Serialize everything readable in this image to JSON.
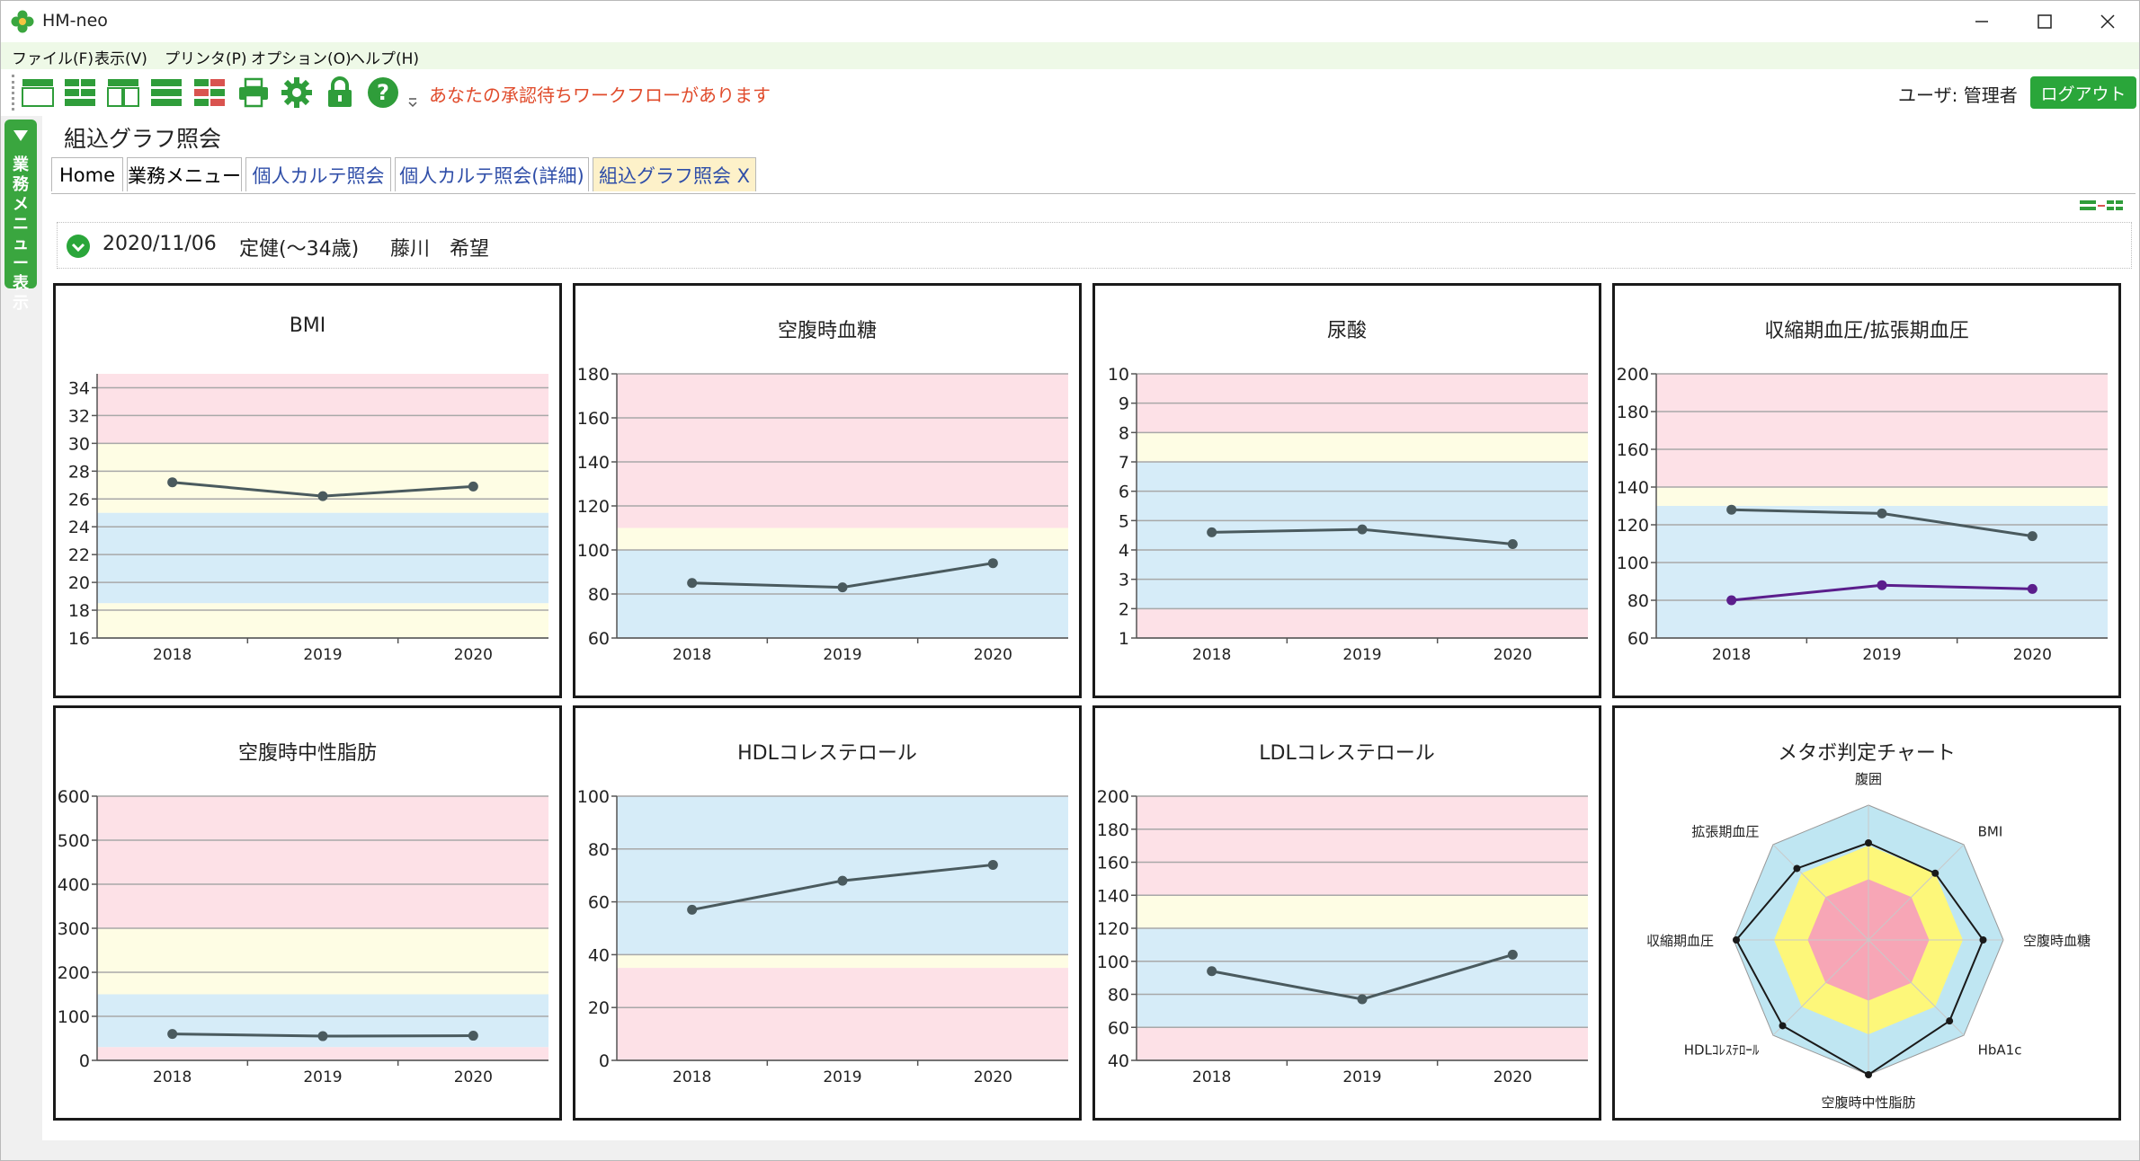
{
  "window": {
    "title": "HM-neo"
  },
  "menu": [
    "ファイル(F)",
    "表示(V)",
    "プリンタ(P)",
    "オプション(O)",
    "ヘルプ(H)"
  ],
  "toolbar": {
    "notice": "あなたの承認待ちワークフローがあります",
    "user_label": "ユーザ: 管理者",
    "logout": "ログアウト"
  },
  "side_menu": {
    "label": "業務メニュー表示"
  },
  "page": {
    "title": "組込グラフ照会"
  },
  "tabs": [
    "Home",
    "業務メニュー",
    "個人カルテ照会",
    "個人カルテ照会(詳細)",
    "組込グラフ照会 X"
  ],
  "info": {
    "date": "2020/11/06",
    "course": "定健(～34歳)",
    "last_name": "藤川",
    "first_name": "希望"
  },
  "colors": {
    "red_band": "#fde1e7",
    "yellow_band": "#fefde4",
    "blue_band": "#d6ecf8",
    "line": "#4a5a5e",
    "purple": "#5b1e8c",
    "accent_green": "#2aa63a"
  },
  "chart_data": [
    {
      "type": "line",
      "title": "BMI",
      "x": [
        "2018",
        "2019",
        "2020"
      ],
      "ylim": [
        16,
        35
      ],
      "yticks": [
        16,
        18,
        20,
        22,
        24,
        26,
        28,
        30,
        32,
        34
      ],
      "series": [
        {
          "values": [
            27.2,
            26.2,
            26.9
          ]
        }
      ],
      "bands": [
        {
          "from": 30,
          "to": 35,
          "color": "red"
        },
        {
          "from": 25,
          "to": 30,
          "color": "yellow"
        },
        {
          "from": 18.5,
          "to": 25,
          "color": "blue"
        },
        {
          "from": 16,
          "to": 18.5,
          "color": "yellow"
        }
      ]
    },
    {
      "type": "line",
      "title": "空腹時血糖",
      "x": [
        "2018",
        "2019",
        "2020"
      ],
      "ylim": [
        60,
        180
      ],
      "yticks": [
        60,
        80,
        100,
        120,
        140,
        160,
        180
      ],
      "series": [
        {
          "values": [
            85,
            83,
            94
          ]
        }
      ],
      "bands": [
        {
          "from": 110,
          "to": 180,
          "color": "red"
        },
        {
          "from": 100,
          "to": 110,
          "color": "yellow"
        },
        {
          "from": 60,
          "to": 100,
          "color": "blue"
        }
      ]
    },
    {
      "type": "line",
      "title": "尿酸",
      "x": [
        "2018",
        "2019",
        "2020"
      ],
      "ylim": [
        1,
        10
      ],
      "yticks": [
        1,
        2,
        3,
        4,
        5,
        6,
        7,
        8,
        9,
        10
      ],
      "series": [
        {
          "values": [
            4.6,
            4.7,
            4.2
          ]
        }
      ],
      "bands": [
        {
          "from": 8,
          "to": 10,
          "color": "red"
        },
        {
          "from": 7,
          "to": 8,
          "color": "yellow"
        },
        {
          "from": 2,
          "to": 7,
          "color": "blue"
        },
        {
          "from": 1,
          "to": 2,
          "color": "red"
        }
      ]
    },
    {
      "type": "line",
      "title": "収縮期血圧/拡張期血圧",
      "x": [
        "2018",
        "2019",
        "2020"
      ],
      "ylim": [
        60,
        200
      ],
      "yticks": [
        60,
        80,
        100,
        120,
        140,
        160,
        180,
        200
      ],
      "series": [
        {
          "values": [
            128,
            126,
            114
          ]
        },
        {
          "values": [
            80,
            88,
            86
          ],
          "color": "purple"
        }
      ],
      "bands": [
        {
          "from": 140,
          "to": 200,
          "color": "red"
        },
        {
          "from": 130,
          "to": 140,
          "color": "yellow"
        },
        {
          "from": 60,
          "to": 130,
          "color": "blue"
        }
      ]
    },
    {
      "type": "line",
      "title": "空腹時中性脂肪",
      "x": [
        "2018",
        "2019",
        "2020"
      ],
      "ylim": [
        0,
        600
      ],
      "yticks": [
        0,
        100,
        200,
        300,
        400,
        500,
        600
      ],
      "series": [
        {
          "values": [
            60,
            55,
            56
          ]
        }
      ],
      "bands": [
        {
          "from": 300,
          "to": 600,
          "color": "red"
        },
        {
          "from": 150,
          "to": 300,
          "color": "yellow"
        },
        {
          "from": 30,
          "to": 150,
          "color": "blue"
        },
        {
          "from": 0,
          "to": 30,
          "color": "red"
        }
      ]
    },
    {
      "type": "line",
      "title": "HDLコレステロール",
      "x": [
        "2018",
        "2019",
        "2020"
      ],
      "ylim": [
        0,
        100
      ],
      "yticks": [
        0,
        20,
        40,
        60,
        80,
        100
      ],
      "series": [
        {
          "values": [
            57,
            68,
            74
          ]
        }
      ],
      "bands": [
        {
          "from": 40,
          "to": 100,
          "color": "blue"
        },
        {
          "from": 35,
          "to": 40,
          "color": "yellow"
        },
        {
          "from": 0,
          "to": 35,
          "color": "red"
        }
      ]
    },
    {
      "type": "line",
      "title": "LDLコレステロール",
      "x": [
        "2018",
        "2019",
        "2020"
      ],
      "ylim": [
        40,
        200
      ],
      "yticks": [
        40,
        60,
        80,
        100,
        120,
        140,
        160,
        180,
        200
      ],
      "series": [
        {
          "values": [
            94,
            77,
            104
          ]
        }
      ],
      "bands": [
        {
          "from": 140,
          "to": 200,
          "color": "red"
        },
        {
          "from": 120,
          "to": 140,
          "color": "yellow"
        },
        {
          "from": 60,
          "to": 120,
          "color": "blue"
        },
        {
          "from": 40,
          "to": 60,
          "color": "red"
        }
      ]
    },
    {
      "type": "radar",
      "title": "メタボ判定チャート",
      "axes": [
        "腹囲",
        "BMI",
        "空腹時血糖",
        "HbA1c",
        "空腹時中性脂肪",
        "HDLｺﾚｽﾃﾛｰﾙ",
        "収縮期血圧",
        "拡張期血圧"
      ],
      "values": [
        0.72,
        0.7,
        0.85,
        0.85,
        1.0,
        0.9,
        0.98,
        0.75
      ]
    }
  ]
}
